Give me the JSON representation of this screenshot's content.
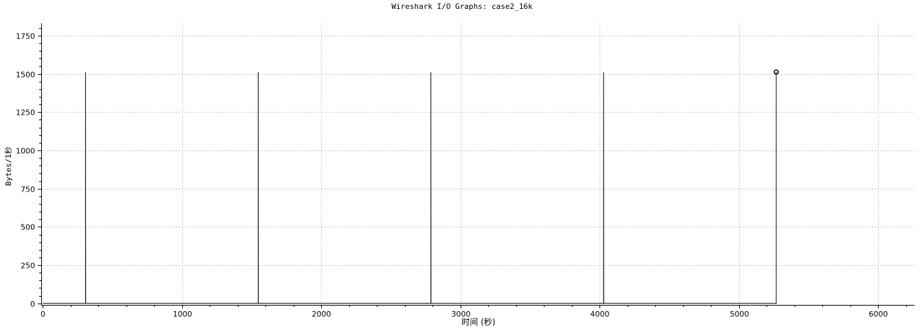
{
  "window": {
    "title": "Wireshark I/O Graphs: case2_16k"
  },
  "chart_data": {
    "type": "line",
    "title": "Wireshark I/O Graphs: case2_16k",
    "xlabel": "时间 (秒)",
    "ylabel": "Bytes/1秒",
    "xlim": [
      -10,
      6260
    ],
    "ylim": [
      -10,
      1830
    ],
    "x_ticks": [
      0,
      1000,
      2000,
      3000,
      4000,
      5000,
      6000
    ],
    "y_ticks": [
      0,
      250,
      500,
      750,
      1000,
      1250,
      1500,
      1750
    ],
    "grid": true,
    "legend": "none",
    "series_color": "#000000",
    "series": [
      {
        "points": [
          {
            "x": 0,
            "y": 0
          },
          {
            "x": 308,
            "y": 0
          },
          {
            "x": 308,
            "y": 1510
          },
          {
            "x": 309,
            "y": 0
          },
          {
            "x": 1548,
            "y": 0
          },
          {
            "x": 1548,
            "y": 1510
          },
          {
            "x": 1549,
            "y": 0
          },
          {
            "x": 2788,
            "y": 0
          },
          {
            "x": 2788,
            "y": 1510
          },
          {
            "x": 2789,
            "y": 0
          },
          {
            "x": 4028,
            "y": 0
          },
          {
            "x": 4028,
            "y": 1510
          },
          {
            "x": 4029,
            "y": 0
          },
          {
            "x": 5268,
            "y": 0
          },
          {
            "x": 5268,
            "y": 1512
          }
        ],
        "last_point": {
          "x": 5268,
          "y": 1512
        }
      }
    ]
  }
}
